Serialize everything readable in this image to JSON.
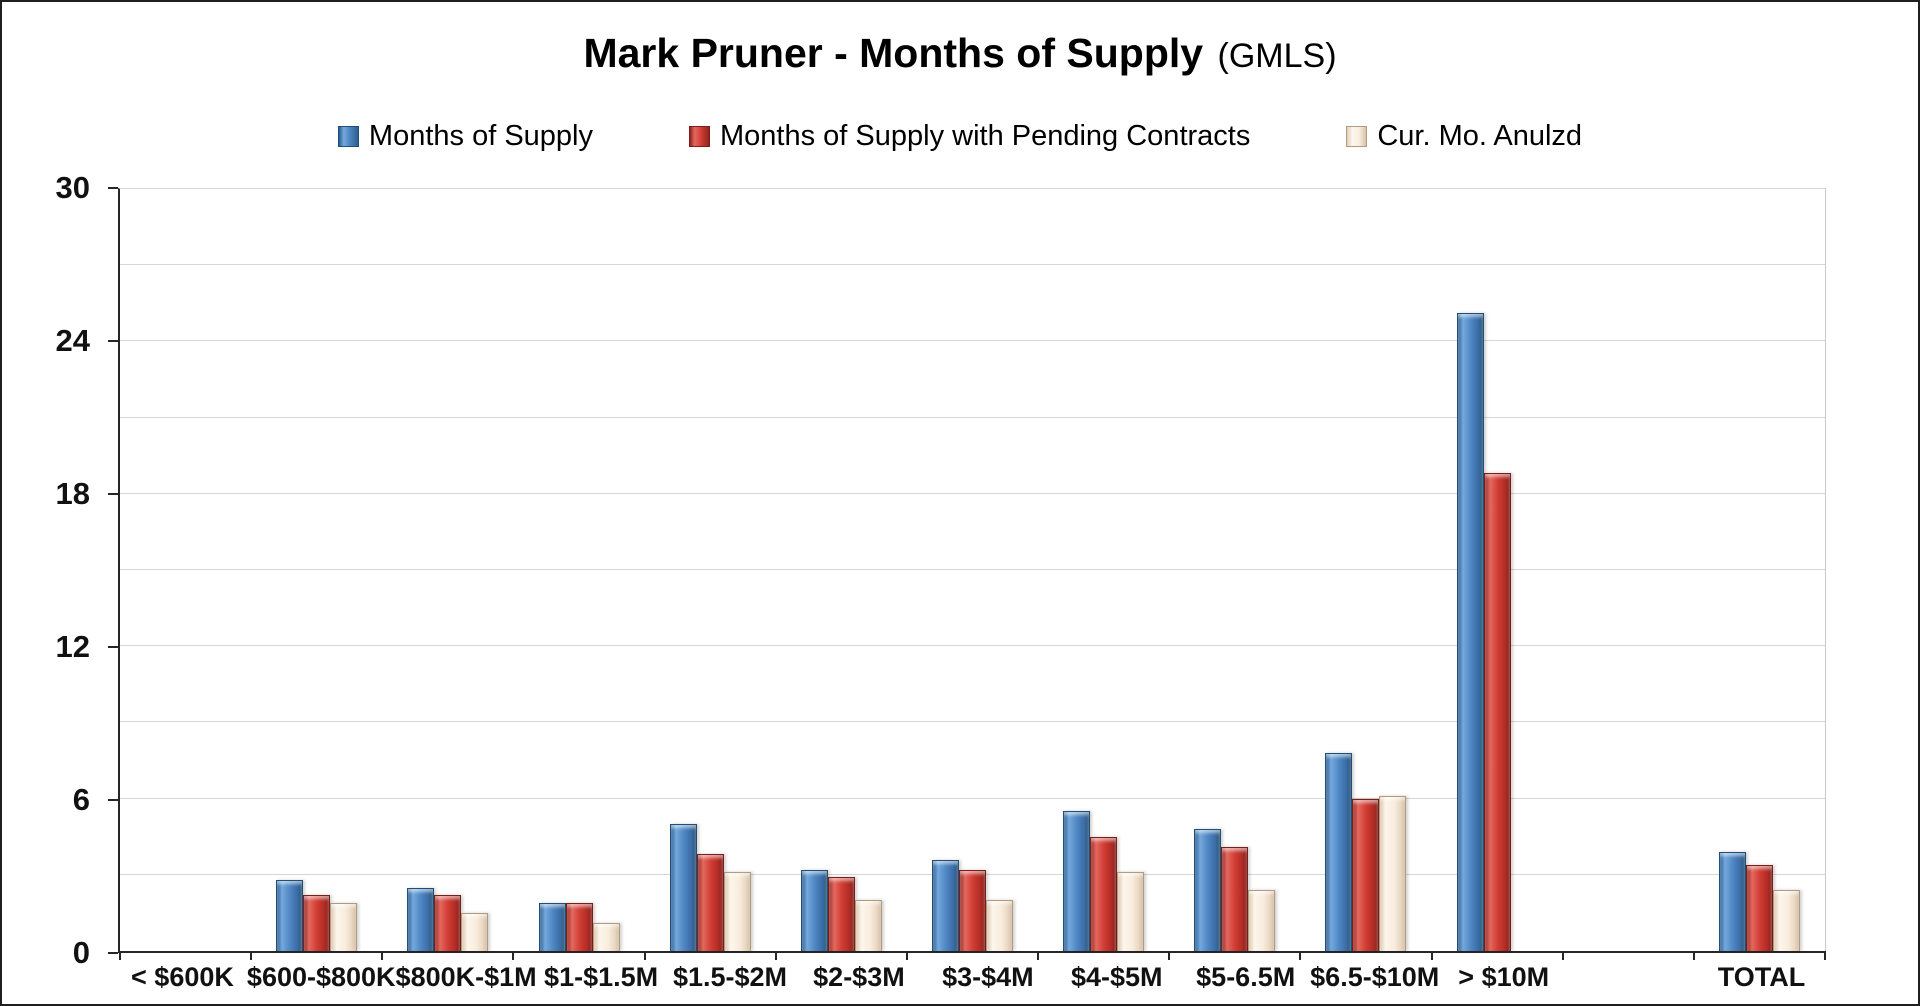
{
  "title": {
    "main": "Mark Pruner - Months of Supply",
    "suffix": "(GMLS)"
  },
  "chart_data": {
    "type": "bar",
    "title": "Mark Pruner - Months of Supply (GMLS)",
    "categories": [
      "< $600K",
      "$600-$800K",
      "$800K-$1M",
      "$1-$1.5M",
      "$1.5-$2M",
      "$2-$3M",
      "$3-$4M",
      "$4-$5M",
      "$5-6.5M",
      "$6.5-$10M",
      "> $10M",
      "",
      "TOTAL"
    ],
    "series": [
      {
        "name": "Months of Supply",
        "color": "#4A82BD",
        "values": [
          0,
          2.8,
          2.5,
          1.9,
          5.0,
          3.2,
          3.6,
          5.5,
          4.8,
          7.8,
          25.1,
          0,
          3.9
        ]
      },
      {
        "name": "Months of Supply with Pending Contracts",
        "color": "#D03C33",
        "values": [
          0,
          2.2,
          2.2,
          1.9,
          3.8,
          2.9,
          3.2,
          4.5,
          4.1,
          6.0,
          18.8,
          0,
          3.4
        ]
      },
      {
        "name": "Cur. Mo. Anulzd",
        "color": "#F8ECDD",
        "values": [
          0,
          1.9,
          1.5,
          1.1,
          3.1,
          2.0,
          2.0,
          3.1,
          2.4,
          6.1,
          0,
          0,
          2.4
        ]
      }
    ],
    "ylim": [
      0,
      30
    ],
    "yticks": [
      0,
      6,
      12,
      18,
      24,
      30
    ],
    "grid_step": 3,
    "grid": true,
    "legend_position": "top",
    "xlabel": "",
    "ylabel": ""
  },
  "colors": {
    "gridline": "#D6D6D6",
    "axis": "#262626",
    "background": "#FFFFFF"
  }
}
